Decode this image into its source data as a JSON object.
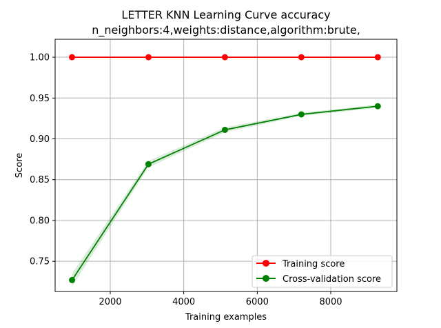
{
  "chart_data": {
    "type": "line",
    "title": "LETTER KNN Learning Curve accuracy",
    "subtitle": "n_neighbors:4,weights:distance,algorithm:brute,",
    "xlabel": "Training examples",
    "ylabel": "Score",
    "xlim": [
      500,
      9800
    ],
    "ylim": [
      0.713,
      1.022
    ],
    "xticks": [
      2000,
      4000,
      6000,
      8000
    ],
    "xtick_labels": [
      "2000",
      "4000",
      "6000",
      "8000"
    ],
    "yticks": [
      0.75,
      0.8,
      0.85,
      0.9,
      0.95,
      1.0
    ],
    "ytick_labels": [
      "0.75",
      "0.80",
      "0.85",
      "0.90",
      "0.95",
      "1.00"
    ],
    "grid": true,
    "legend_position": "lower-right",
    "x": [
      960,
      3040,
      5120,
      7200,
      9280
    ],
    "series": [
      {
        "name": "Training score",
        "color": "#ff0000",
        "values": [
          1.0,
          1.0,
          1.0,
          1.0,
          1.0
        ],
        "band": [
          0.0,
          0.0,
          0.0,
          0.0,
          0.0
        ]
      },
      {
        "name": "Cross-validation score",
        "color": "#008000",
        "values": [
          0.727,
          0.869,
          0.911,
          0.93,
          0.94
        ],
        "band": [
          0.008,
          0.004,
          0.003,
          0.002,
          0.002
        ]
      }
    ]
  }
}
